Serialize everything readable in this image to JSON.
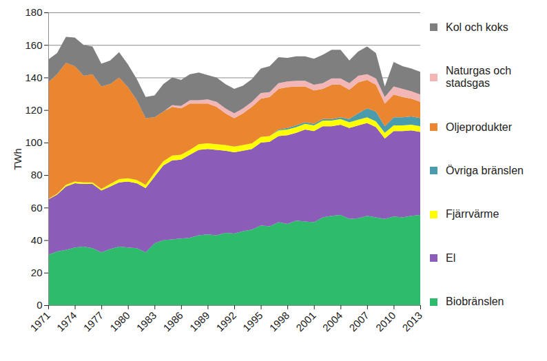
{
  "chart_data": {
    "type": "area",
    "stacked": true,
    "grid": true,
    "legend": "right",
    "ylabel": "TWh",
    "xlim": [
      1971,
      2013
    ],
    "xticks": [
      1971,
      1974,
      1977,
      1980,
      1983,
      1986,
      1989,
      1992,
      1995,
      1998,
      2001,
      2004,
      2007,
      2010,
      2013
    ],
    "ylim": [
      0,
      180
    ],
    "yticks": [
      0,
      20,
      40,
      60,
      80,
      100,
      120,
      140,
      160,
      180
    ],
    "x": [
      1971,
      1972,
      1973,
      1974,
      1975,
      1976,
      1977,
      1978,
      1979,
      1980,
      1981,
      1982,
      1983,
      1984,
      1985,
      1986,
      1987,
      1988,
      1989,
      1990,
      1991,
      1992,
      1993,
      1994,
      1995,
      1996,
      1997,
      1998,
      1999,
      2000,
      2001,
      2002,
      2003,
      2004,
      2005,
      2006,
      2007,
      2008,
      2009,
      2010,
      2011,
      2012,
      2013
    ],
    "series": [
      {
        "name": "Biobränslen",
        "color": "#2fbb6c",
        "values": [
          31,
          33,
          34,
          35.5,
          36,
          35,
          32.5,
          34.5,
          36,
          35.5,
          35,
          32.5,
          38,
          40,
          40.5,
          41,
          41.5,
          43,
          43.5,
          43,
          44.5,
          44,
          45.5,
          46.5,
          49,
          48.5,
          51,
          50,
          52,
          51.5,
          51,
          54,
          55,
          55.5,
          53,
          53.5,
          55,
          54,
          53,
          54.5,
          54,
          55,
          55.5
        ]
      },
      {
        "name": "El",
        "color": "#8b5cb8",
        "values": [
          34,
          35,
          39,
          39.5,
          38.5,
          39.5,
          38,
          38.5,
          39.5,
          40.5,
          40,
          39.5,
          41,
          46,
          48.5,
          48.5,
          51,
          52.5,
          52.5,
          52.5,
          50.5,
          50,
          49.5,
          49.5,
          51,
          52,
          53,
          54.5,
          54,
          56.5,
          56,
          56,
          55,
          55.5,
          56,
          57,
          57,
          55.5,
          49.5,
          52.5,
          53,
          52.5,
          51
        ]
      },
      {
        "name": "Fjärrvärme",
        "color": "#ffff00",
        "values": [
          0.3,
          0.5,
          1,
          1,
          1,
          1,
          1,
          1.5,
          2,
          2,
          2,
          2,
          2.5,
          2.5,
          3,
          3,
          3,
          3.5,
          3.5,
          3.5,
          3.5,
          3.5,
          3.5,
          3.5,
          3.5,
          3.5,
          3.5,
          3.5,
          3.5,
          3.5,
          3.5,
          3.5,
          3.5,
          3.5,
          3.5,
          3.5,
          3.5,
          3.5,
          3.5,
          3.5,
          3.5,
          3.5,
          3.5
        ]
      },
      {
        "name": "Övriga bränslen",
        "color": "#4a9bab",
        "values": [
          0,
          0,
          0,
          0,
          0,
          0,
          0,
          0,
          0,
          0,
          0,
          0,
          0,
          0,
          0,
          0,
          0,
          0,
          0,
          0,
          0,
          0,
          0,
          0,
          0,
          0,
          0.5,
          1,
          1,
          1,
          1,
          1,
          1,
          1,
          2,
          4,
          5.5,
          6,
          4,
          5,
          5,
          5,
          5
        ]
      },
      {
        "name": "Oljeprodukter",
        "color": "#ea8530",
        "values": [
          71.7,
          73.5,
          75,
          71,
          65.5,
          66.5,
          63,
          61.5,
          62.5,
          56,
          49,
          41,
          34,
          30.5,
          30,
          28.5,
          28.5,
          25,
          24.5,
          23,
          19.5,
          17.5,
          19.5,
          22.5,
          23.5,
          24,
          25,
          25,
          24,
          22,
          20.5,
          18.5,
          21,
          20,
          18,
          19,
          17.5,
          16.5,
          14,
          14,
          12.5,
          11,
          10
        ]
      },
      {
        "name": "Naturgas och stadsgas",
        "color": "#f2b6b6",
        "values": [
          0,
          0,
          0,
          0,
          0,
          0,
          0,
          0,
          0,
          0,
          0,
          0,
          0,
          0,
          1,
          1.5,
          2,
          2,
          2.5,
          3,
          3,
          3,
          3,
          3,
          3.5,
          3,
          3.5,
          3.5,
          3.5,
          3.5,
          3.5,
          3.5,
          4,
          4,
          4,
          4,
          3.5,
          4,
          4,
          5,
          5,
          4.5,
          4.5
        ]
      },
      {
        "name": "Kol och koks",
        "color": "#7f7f7f",
        "values": [
          14,
          13,
          16,
          17.5,
          19,
          17,
          14,
          14.5,
          15.5,
          14,
          13,
          13,
          13.5,
          17,
          17,
          16,
          16,
          17,
          15,
          15,
          15,
          15,
          14,
          14,
          15,
          16,
          16,
          14.5,
          15,
          15,
          16,
          17.5,
          17.5,
          17.5,
          14,
          15,
          17,
          15.5,
          6.5,
          15,
          14,
          14,
          14
        ]
      }
    ]
  }
}
